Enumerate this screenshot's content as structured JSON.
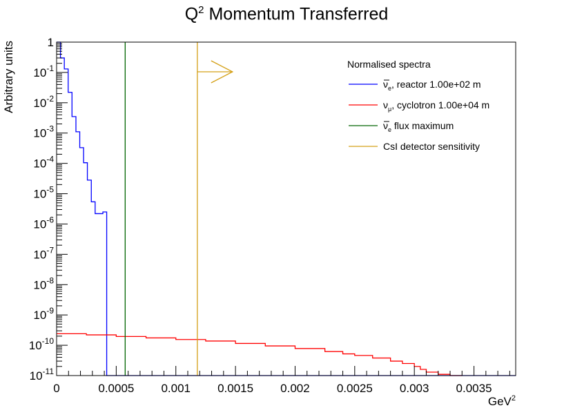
{
  "chart_data": {
    "type": "line",
    "title": {
      "base": "Q",
      "sup": "2",
      "rest": " Momentum Transferred"
    },
    "xlabel": {
      "base": "GeV",
      "sup": "2"
    },
    "ylabel": "Arbitrary units",
    "xlim": [
      0,
      0.00385
    ],
    "ylim": [
      1e-11,
      1
    ],
    "yscale": "log",
    "grid": false,
    "legend_title": "Normalised spectra",
    "legend_placement": "top-right",
    "x_ticks": [
      "0",
      "0.0005",
      "0.001",
      "0.0015",
      "0.002",
      "0.0025",
      "0.003",
      "0.0035"
    ],
    "x_tick_values": [
      0,
      0.0005,
      0.001,
      0.0015,
      0.002,
      0.0025,
      0.003,
      0.0035
    ],
    "y_tick_exponents": [
      0,
      -1,
      -2,
      -3,
      -4,
      -5,
      -6,
      -7,
      -8,
      -9,
      -10,
      -11
    ],
    "series": [
      {
        "name": "reactor",
        "legend": {
          "sym": "ν",
          "bar": true,
          "sub": "e",
          "rest": ", reactor 1.00e+02 m"
        },
        "color": "#0000ff",
        "kind": "histogram",
        "bin_edges": [
          0,
          3.23e-05,
          6.46e-05,
          9.69e-05,
          0.000129,
          0.000162,
          0.000194,
          0.000226,
          0.000258,
          0.000291,
          0.000323,
          0.000355,
          0.000388,
          0.00042,
          0.000452
        ],
        "values": [
          1.0,
          0.3,
          0.13,
          0.022,
          0.0035,
          0.0011,
          0.00033,
          0.000105,
          2.8e-05,
          5.4e-06,
          2.2e-06,
          2.2e-06,
          2.5e-06,
          0
        ]
      },
      {
        "name": "cyclotron",
        "legend": {
          "sym": "ν",
          "bar": false,
          "sub": "μ",
          "rest": ", cyclotron 1.00e+04 m"
        },
        "color": "#ff0000",
        "kind": "histogram",
        "x": [
          0,
          0.00025,
          0.0005,
          0.00075,
          0.001,
          0.00125,
          0.0015,
          0.00175,
          0.002,
          0.00225,
          0.0024,
          0.0025,
          0.00265,
          0.0028,
          0.0029,
          0.003,
          0.00305,
          0.0031,
          0.0032,
          0.0033
        ],
        "values": [
          2.4e-10,
          2.2e-10,
          1.95e-10,
          1.75e-10,
          1.55e-10,
          1.38e-10,
          1.15e-10,
          9.5e-11,
          7.8e-11,
          6.2e-11,
          5.2e-11,
          4.6e-11,
          3.8e-11,
          3e-11,
          2.5e-11,
          2e-11,
          1.6e-11,
          1.3e-11,
          1.1e-11,
          1e-11
        ]
      }
    ],
    "markers": [
      {
        "name": "flux-maximum",
        "legend": {
          "sym": "ν",
          "bar": true,
          "sub": "e",
          "rest": " flux maximum"
        },
        "color": "#006400",
        "x": 0.000575
      },
      {
        "name": "csi-sensitivity",
        "legend": {
          "sym": "",
          "bar": false,
          "sub": "",
          "rest": "CsI detector sensitivity"
        },
        "color": "#d4a017",
        "x": 0.00118,
        "arrow": "right"
      }
    ]
  }
}
